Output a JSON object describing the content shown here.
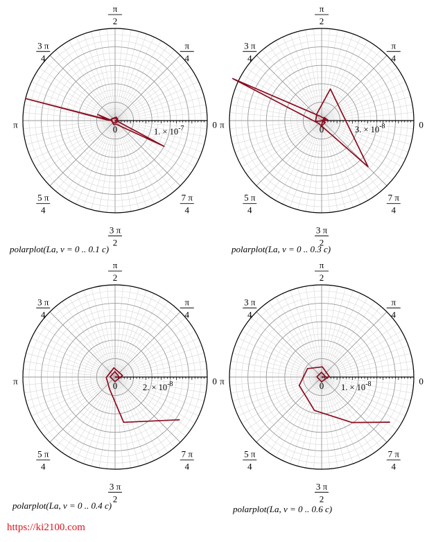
{
  "chart_data": [
    {
      "type": "polar-line",
      "angle_ticks": [
        "0",
        "π/4",
        "π/2",
        "3π/4",
        "π",
        "5π/4",
        "3π/2",
        "7π/4"
      ],
      "origin_label": "0",
      "radial_label": "1. × 10^-7",
      "radial_label_mantissa": "1. × 10",
      "radial_label_exponent": "-7",
      "caption": "polarplot(La, v = 0 .. 0.1 c)",
      "series_color": "#8b0a1e",
      "radial_max_units": 1.5e-07,
      "points_polar": [
        [
          0,
          0
        ],
        [
          0.3,
          4e-09
        ],
        [
          1.2,
          6e-09
        ],
        [
          2.3,
          5e-09
        ],
        [
          3.0,
          8e-09
        ],
        [
          2.8,
          3e-08
        ],
        [
          3.1,
          1.05e-08
        ],
        [
          2.9,
          1.5e-07
        ],
        [
          3.14,
          6e-09
        ],
        [
          3.5,
          5e-09
        ],
        [
          4.4,
          7e-09
        ],
        [
          5.0,
          6e-09
        ],
        [
          5.8,
          9e-08
        ],
        [
          6.0,
          4e-09
        ],
        [
          0.6,
          5e-09
        ],
        [
          1.7,
          4e-09
        ],
        [
          2.6,
          6e-09
        ],
        [
          3.3,
          5e-09
        ],
        [
          4.1,
          5e-09
        ],
        [
          5.5,
          4e-09
        ],
        [
          0,
          0
        ]
      ]
    },
    {
      "type": "polar-line",
      "angle_ticks": [
        "0",
        "π/4",
        "π/2",
        "3π/4",
        "π",
        "5π/4",
        "3π/2",
        "7π/4"
      ],
      "origin_label": "0",
      "radial_label": "3. × 10^-8",
      "radial_label_mantissa": "3. × 10",
      "radial_label_exponent": "-8",
      "caption": "polarplot(La, v = 0 .. 0.3 c)",
      "series_color": "#8b0a1e",
      "radial_max_units": 4.5e-08,
      "points_polar": [
        [
          0,
          0
        ],
        [
          0.4,
          2e-09
        ],
        [
          2.0,
          2.5e-09
        ],
        [
          2.7,
          4.8e-08
        ],
        [
          3.9,
          2e-09
        ],
        [
          5.5,
          3.2e-08
        ],
        [
          1.3,
          1.6e-08
        ],
        [
          2.2,
          4e-09
        ],
        [
          3.3,
          3e-09
        ],
        [
          0.1,
          3e-09
        ],
        [
          0.9,
          2e-09
        ],
        [
          4.6,
          3e-09
        ],
        [
          5.8,
          2e-09
        ],
        [
          0,
          0
        ]
      ]
    },
    {
      "type": "polar-line",
      "angle_ticks": [
        "0",
        "π/4",
        "π/2",
        "3π/4",
        "π",
        "5π/4",
        "3π/2",
        "7π/4"
      ],
      "origin_label": "0",
      "radial_label": "2. × 10^-8",
      "radial_label_mantissa": "2. × 10",
      "radial_label_exponent": "-8",
      "caption": "polarplot(La, v = 0 .. 0.4 c)",
      "series_color": "#8b0a1e",
      "radial_max_units": 2.2e-08,
      "points_polar": [
        [
          0,
          0
        ],
        [
          0.0,
          1e-09
        ],
        [
          1.6,
          1.3e-09
        ],
        [
          3.1,
          1.2e-09
        ],
        [
          4.7,
          1.1e-09
        ],
        [
          0.2,
          1.8e-09
        ],
        [
          1.7,
          2.2e-09
        ],
        [
          3.2,
          2.1e-09
        ],
        [
          4.3,
          3.2e-09
        ],
        [
          4.9,
          1.1e-08
        ],
        [
          5.7,
          1.85e-08
        ]
      ]
    },
    {
      "type": "polar-line",
      "angle_ticks": [
        "0",
        "π/4",
        "π/2",
        "3π/4",
        "π",
        "5π/4",
        "3π/2",
        "7π/4"
      ],
      "origin_label": "0",
      "radial_label": "1. × 10^-8",
      "radial_label_mantissa": "1. × 10",
      "radial_label_exponent": "-8",
      "caption": "polarplot(La, v = 0 .. 0.6 c)",
      "series_color": "#8b0a1e",
      "radial_max_units": 1.35e-08,
      "points_polar": [
        [
          0,
          0
        ],
        [
          0.0,
          6e-10
        ],
        [
          1.6,
          7e-10
        ],
        [
          3.1,
          7e-10
        ],
        [
          4.7,
          7e-10
        ],
        [
          0.1,
          1.1e-09
        ],
        [
          1.5,
          1.5e-09
        ],
        [
          2.6,
          2.4e-09
        ],
        [
          3.5,
          3.5e-09
        ],
        [
          4.5,
          5e-09
        ],
        [
          5.3,
          8e-09
        ],
        [
          5.7,
          1.2e-08
        ]
      ]
    }
  ],
  "footer": {
    "url": "https://ki2100.com"
  }
}
